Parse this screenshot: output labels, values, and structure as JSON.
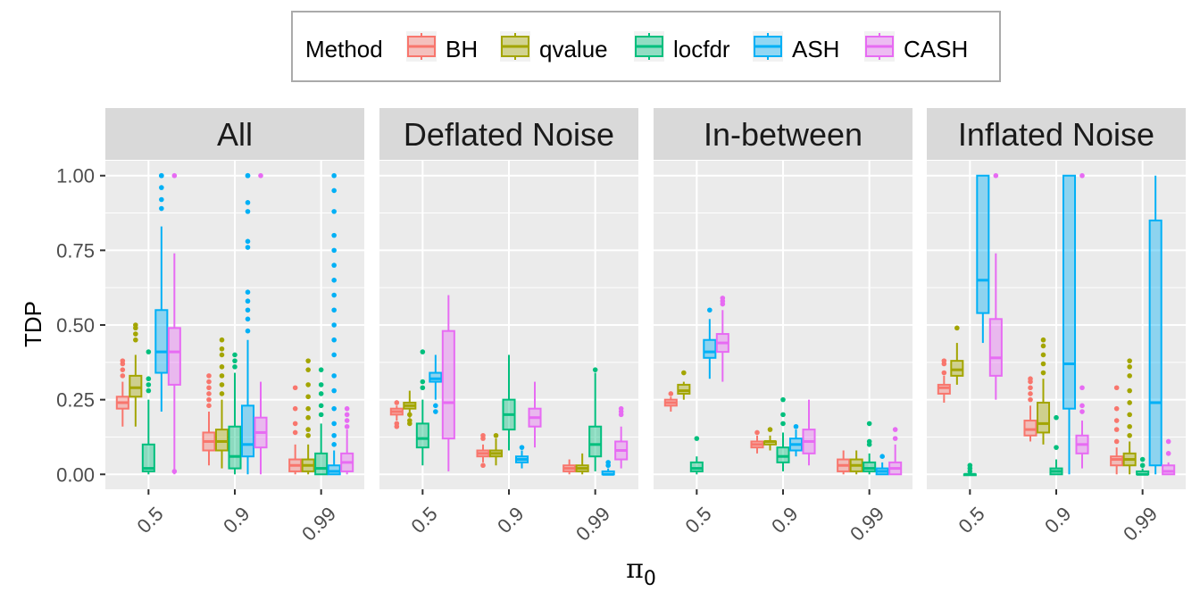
{
  "chart_data": {
    "type": "boxplot",
    "ylabel": "TDP",
    "xlabel": "π",
    "xlabel_subscript": "0",
    "facets": [
      "All",
      "Deflated Noise",
      "In-between",
      "Inflated Noise"
    ],
    "categories": [
      "0.5",
      "0.9",
      "0.99"
    ],
    "ylim": [
      -0.05,
      1.05
    ],
    "yticks": [
      "0.00",
      "0.25",
      "0.50",
      "0.75",
      "1.00"
    ],
    "legend": {
      "title": "Method",
      "position": "top"
    },
    "series": [
      {
        "name": "BH",
        "color": "#F8766D"
      },
      {
        "name": "qvalue",
        "color": "#A3A500"
      },
      {
        "name": "locfdr",
        "color": "#00BF7D"
      },
      {
        "name": "ASH",
        "color": "#00B0F6"
      },
      {
        "name": "CASH",
        "color": "#E76BF3"
      }
    ],
    "boxes": {
      "All": [
        [
          [
            0.16,
            0.22,
            0.24,
            0.26,
            0.31,
            [
              0.33,
              0.35,
              0.37,
              0.38
            ]
          ],
          [
            0.16,
            0.26,
            0.29,
            0.33,
            0.4,
            [
              0.45,
              0.47,
              0.49,
              0.5
            ]
          ],
          [
            0.0,
            0.01,
            0.02,
            0.1,
            0.25,
            [
              0.28,
              0.3,
              0.32,
              0.41
            ]
          ],
          [
            0.21,
            0.34,
            0.41,
            0.55,
            0.83,
            [
              0.89,
              0.92,
              0.96,
              1.0,
              1.0
            ]
          ],
          [
            0.0,
            0.3,
            0.41,
            0.49,
            0.74,
            [
              0.01,
              1.0
            ]
          ]
        ],
        [
          [
            0.03,
            0.08,
            0.11,
            0.14,
            0.21,
            [
              0.23,
              0.25,
              0.27,
              0.29,
              0.31,
              0.33
            ]
          ],
          [
            0.02,
            0.08,
            0.11,
            0.15,
            0.25,
            [
              0.27,
              0.3,
              0.33,
              0.36,
              0.4,
              0.42,
              0.45
            ]
          ],
          [
            0.0,
            0.02,
            0.06,
            0.16,
            0.34,
            [
              0.36,
              0.38,
              0.4
            ]
          ],
          [
            0.0,
            0.06,
            0.1,
            0.23,
            0.45,
            [
              0.48,
              0.52,
              0.55,
              0.58,
              0.61,
              0.76,
              0.78,
              0.88,
              0.91,
              1.0,
              1.0
            ]
          ],
          [
            0.0,
            0.09,
            0.14,
            0.19,
            0.31,
            [
              1.0
            ]
          ]
        ],
        [
          [
            0.0,
            0.01,
            0.03,
            0.05,
            0.1,
            [
              0.14,
              0.17,
              0.22,
              0.29
            ]
          ],
          [
            0.0,
            0.01,
            0.03,
            0.05,
            0.1,
            [
              0.13,
              0.15,
              0.19,
              0.22,
              0.26,
              0.3,
              0.35,
              0.38
            ]
          ],
          [
            0.0,
            0.0,
            0.02,
            0.07,
            0.17,
            [
              0.2,
              0.23,
              0.27,
              0.3,
              0.35
            ]
          ],
          [
            0.0,
            0.0,
            0.01,
            0.03,
            0.08,
            [
              0.1,
              0.13,
              0.17,
              0.22,
              0.28,
              0.33,
              0.4,
              0.45,
              0.5,
              0.55,
              0.6,
              0.65,
              0.7,
              0.75,
              0.8,
              0.88,
              0.95,
              1.0
            ]
          ],
          [
            0.0,
            0.01,
            0.04,
            0.07,
            0.15,
            [
              0.16,
              0.18,
              0.2,
              0.22
            ]
          ]
        ]
      ],
      "Deflated Noise": [
        [
          [
            0.18,
            0.2,
            0.21,
            0.22,
            0.23,
            [
              0.16,
              0.17,
              0.24
            ]
          ],
          [
            0.19,
            0.22,
            0.23,
            0.24,
            0.28,
            [
              0.17,
              0.18,
              0.2
            ]
          ],
          [
            0.03,
            0.09,
            0.12,
            0.17,
            0.25,
            [
              0.29,
              0.31,
              0.41
            ]
          ],
          [
            0.25,
            0.31,
            0.32,
            0.34,
            0.4,
            [
              0.21,
              0.23
            ]
          ],
          [
            0.01,
            0.12,
            0.24,
            0.48,
            0.6,
            []
          ]
        ],
        [
          [
            0.04,
            0.06,
            0.07,
            0.08,
            0.1,
            [
              0.03,
              0.12,
              0.13
            ]
          ],
          [
            0.03,
            0.06,
            0.07,
            0.08,
            0.12,
            [
              0.13
            ]
          ],
          [
            0.08,
            0.15,
            0.2,
            0.25,
            0.4,
            []
          ],
          [
            0.02,
            0.04,
            0.05,
            0.06,
            0.08,
            [
              0.09
            ]
          ],
          [
            0.09,
            0.16,
            0.19,
            0.22,
            0.31,
            []
          ]
        ],
        [
          [
            0.0,
            0.01,
            0.02,
            0.03,
            0.05,
            []
          ],
          [
            0.0,
            0.01,
            0.02,
            0.03,
            0.07,
            []
          ],
          [
            0.01,
            0.06,
            0.1,
            0.16,
            0.34,
            [
              0.35
            ]
          ],
          [
            0.0,
            0.0,
            0.0,
            0.01,
            0.02,
            [
              0.03,
              0.04
            ]
          ],
          [
            0.02,
            0.05,
            0.08,
            0.11,
            0.16,
            [
              0.2,
              0.21,
              0.22
            ]
          ]
        ]
      ],
      "In-between": [
        [
          [
            0.21,
            0.23,
            0.24,
            0.25,
            0.26,
            [
              0.27
            ]
          ],
          [
            0.25,
            0.27,
            0.28,
            0.3,
            0.31,
            [
              0.34
            ]
          ],
          [
            0.0,
            0.01,
            0.02,
            0.04,
            0.06,
            [
              0.12
            ]
          ],
          [
            0.32,
            0.39,
            0.41,
            0.45,
            0.52,
            [
              0.55
            ]
          ],
          [
            0.31,
            0.41,
            0.44,
            0.47,
            0.55,
            [
              0.57,
              0.58,
              0.59
            ]
          ]
        ],
        [
          [
            0.07,
            0.09,
            0.1,
            0.11,
            0.13,
            [
              0.14
            ]
          ],
          [
            0.08,
            0.1,
            0.11,
            0.11,
            0.13,
            [
              0.15
            ]
          ],
          [
            0.01,
            0.04,
            0.06,
            0.09,
            0.14,
            [
              0.17,
              0.2,
              0.25
            ]
          ],
          [
            0.06,
            0.08,
            0.1,
            0.12,
            0.15,
            [
              0.16
            ]
          ],
          [
            0.03,
            0.07,
            0.11,
            0.15,
            0.25,
            []
          ]
        ],
        [
          [
            0.0,
            0.01,
            0.03,
            0.05,
            0.08,
            []
          ],
          [
            0.0,
            0.01,
            0.03,
            0.05,
            0.08,
            []
          ],
          [
            0.0,
            0.01,
            0.02,
            0.04,
            0.07,
            [
              0.1,
              0.11,
              0.17
            ]
          ],
          [
            0.0,
            0.0,
            0.01,
            0.02,
            0.04,
            [
              0.06
            ]
          ],
          [
            0.0,
            0.0,
            0.02,
            0.04,
            0.1,
            [
              0.12,
              0.15
            ]
          ]
        ]
      ],
      "Inflated Noise": [
        [
          [
            0.24,
            0.27,
            0.29,
            0.3,
            0.33,
            [
              0.34,
              0.37,
              0.38
            ]
          ],
          [
            0.3,
            0.33,
            0.35,
            0.38,
            0.44,
            [
              0.49
            ]
          ],
          [
            0.0,
            0.0,
            0.0,
            0.0,
            0.0,
            [
              0.01,
              0.02,
              0.03
            ]
          ],
          [
            0.44,
            0.54,
            0.65,
            1.0,
            1.0,
            []
          ],
          [
            0.25,
            0.33,
            0.39,
            0.52,
            0.74,
            [
              1.0
            ]
          ]
        ],
        [
          [
            0.11,
            0.13,
            0.15,
            0.18,
            0.23,
            [
              0.25,
              0.27,
              0.29,
              0.31,
              0.32
            ]
          ],
          [
            0.1,
            0.14,
            0.17,
            0.24,
            0.32,
            [
              0.34,
              0.37,
              0.4,
              0.43,
              0.45
            ]
          ],
          [
            0.0,
            0.0,
            0.01,
            0.02,
            0.05,
            [
              0.09,
              0.19
            ]
          ],
          [
            0.0,
            0.22,
            0.37,
            1.0,
            1.0,
            []
          ],
          [
            0.02,
            0.07,
            0.1,
            0.13,
            0.18,
            [
              0.21,
              0.23,
              0.29,
              1.0
            ]
          ]
        ],
        [
          [
            0.0,
            0.03,
            0.05,
            0.06,
            0.09,
            [
              0.11,
              0.15,
              0.18,
              0.22,
              0.29
            ]
          ],
          [
            0.0,
            0.03,
            0.05,
            0.07,
            0.11,
            [
              0.13,
              0.16,
              0.2,
              0.24,
              0.28,
              0.33,
              0.36,
              0.38
            ]
          ],
          [
            0.0,
            0.0,
            0.0,
            0.01,
            0.02,
            [
              0.03,
              0.05
            ]
          ],
          [
            0.0,
            0.03,
            0.24,
            0.85,
            1.0,
            []
          ],
          [
            0.0,
            0.0,
            0.01,
            0.03,
            0.04,
            [
              0.07,
              0.11
            ]
          ]
        ]
      ]
    }
  }
}
